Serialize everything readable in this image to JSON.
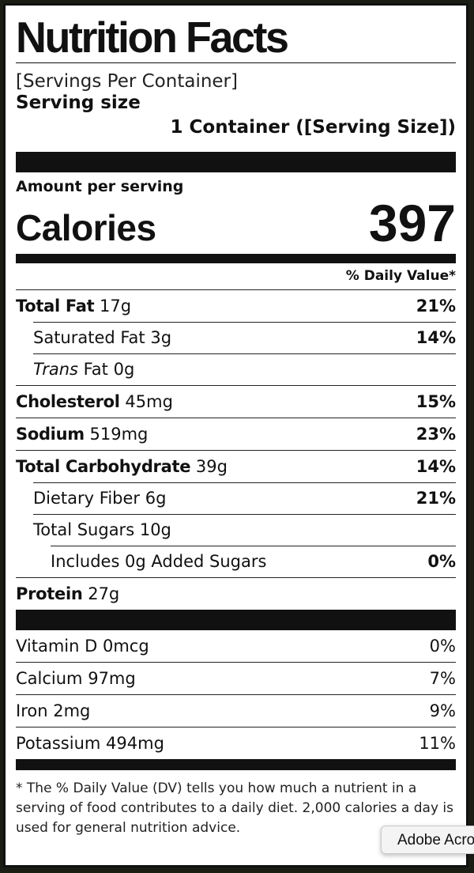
{
  "label": {
    "title": "Nutrition Facts",
    "servings_per_container": "[Servings Per Container]",
    "serving_size_label": "Serving size",
    "serving_size_value": "1 Container ([Serving Size])",
    "amount_per_serving": "Amount per serving",
    "calories_label": "Calories",
    "calories_value": "397",
    "daily_value_header": "% Daily Value*",
    "nutrients": [
      {
        "name": "Total Fat",
        "amount": "17g",
        "dv": "21%"
      },
      {
        "name": "Saturated Fat",
        "amount": "3g",
        "dv": "14%"
      },
      {
        "name": "Trans",
        "name_suffix": "Fat",
        "amount": "0g",
        "dv": ""
      },
      {
        "name": "Cholesterol",
        "amount": "45mg",
        "dv": "15%"
      },
      {
        "name": "Sodium",
        "amount": "519mg",
        "dv": "23%"
      },
      {
        "name": "Total Carbohydrate",
        "amount": "39g",
        "dv": "14%"
      },
      {
        "name": "Dietary Fiber",
        "amount": "6g",
        "dv": "21%"
      },
      {
        "name": "Total Sugars",
        "amount": "10g",
        "dv": ""
      },
      {
        "name": "Includes 0g Added Sugars",
        "amount": "",
        "dv": "0%"
      },
      {
        "name": "Protein",
        "amount": "27g",
        "dv": ""
      }
    ],
    "vitamins": [
      {
        "name": "Vitamin D",
        "amount": "0mcg",
        "dv": "0%"
      },
      {
        "name": "Calcium",
        "amount": "97mg",
        "dv": "7%"
      },
      {
        "name": "Iron",
        "amount": "2mg",
        "dv": "9%"
      },
      {
        "name": "Potassium",
        "amount": "494mg",
        "dv": "11%"
      }
    ],
    "footnote": "* The % Daily Value (DV) tells you how much a nutrient in a serving of food contributes to a daily diet. 2,000 calories a day is used for general nutrition advice."
  },
  "tooltip": {
    "text": "Adobe Acrobat"
  }
}
